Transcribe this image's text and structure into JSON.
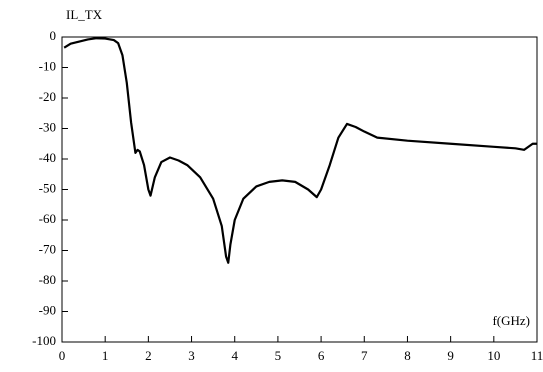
{
  "chart_data": {
    "type": "line",
    "title": "IL_TX",
    "x_label": "f(GHz)",
    "series": [
      {
        "name": "IL_TX",
        "color": "#000000",
        "x": [
          0.05,
          0.2,
          0.4,
          0.6,
          0.8,
          1.0,
          1.2,
          1.3,
          1.4,
          1.5,
          1.6,
          1.7,
          1.75,
          1.8,
          1.9,
          2.0,
          2.05,
          2.15,
          2.3,
          2.5,
          2.7,
          2.9,
          3.2,
          3.5,
          3.7,
          3.8,
          3.85,
          3.9,
          4.0,
          4.2,
          4.5,
          4.8,
          5.1,
          5.4,
          5.7,
          5.9,
          6.0,
          6.2,
          6.4,
          6.6,
          6.8,
          7.0,
          7.3,
          8,
          9,
          10,
          10.5,
          10.7,
          10.9,
          11
        ],
        "values": [
          -3.5,
          -2.2,
          -1.5,
          -0.8,
          -0.4,
          -0.5,
          -1,
          -2,
          -6,
          -15,
          -28,
          -38,
          -37,
          -37.5,
          -42,
          -50,
          -52,
          -46,
          -41,
          -39.5,
          -40.5,
          -42,
          -46,
          -53,
          -62,
          -72,
          -74,
          -68,
          -60,
          -53,
          -49,
          -47.5,
          -47,
          -47.5,
          -50,
          -52.5,
          -50,
          -42,
          -33,
          -28.5,
          -29.5,
          -31,
          -33,
          -34,
          -35,
          -36,
          -36.5,
          -37,
          -35,
          -35
        ]
      }
    ],
    "xlim": [
      0,
      11
    ],
    "xticks": [
      0,
      1,
      2,
      3,
      4,
      5,
      6,
      7,
      8,
      9,
      10,
      11
    ],
    "ylim": [
      -100,
      0
    ],
    "yticks": [
      0,
      -10,
      -20,
      -30,
      -40,
      -50,
      -60,
      -70,
      -80,
      -90,
      -100
    ],
    "grid": false
  }
}
